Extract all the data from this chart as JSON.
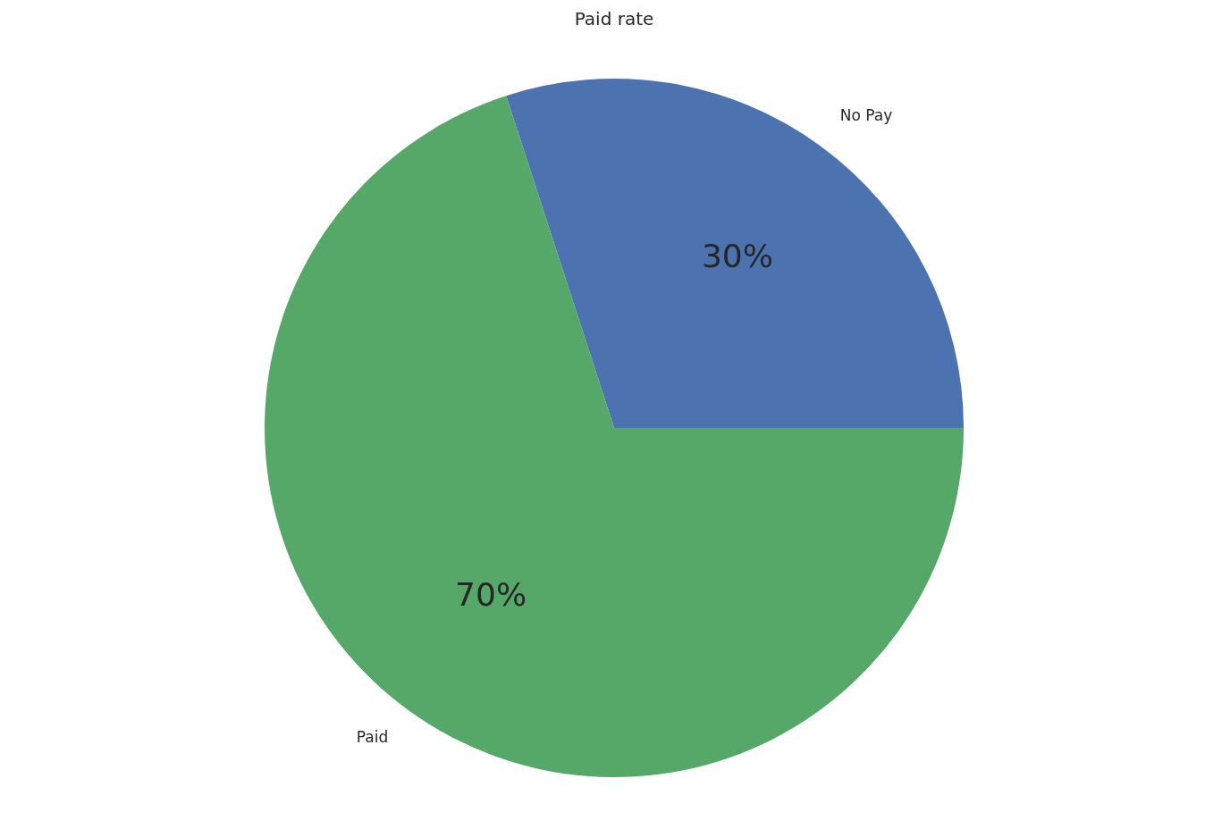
{
  "chart_data": {
    "type": "pie",
    "title": "Paid rate",
    "categories": [
      "No Pay",
      "Paid"
    ],
    "values": [
      30,
      70
    ],
    "colors": [
      "#4c72b0",
      "#55a868"
    ],
    "value_labels": [
      "30%",
      "70%"
    ],
    "legend": false
  }
}
